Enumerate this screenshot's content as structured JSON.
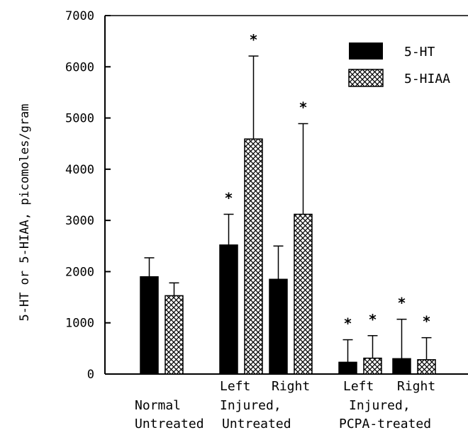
{
  "chart_data": {
    "type": "bar",
    "title": "",
    "xlabel": "",
    "ylabel": "5-HT or 5-HIAA, picomoles/gram",
    "ylim": [
      0,
      7000
    ],
    "yticks": [
      0,
      1000,
      2000,
      3000,
      4000,
      5000,
      6000,
      7000
    ],
    "grid": false,
    "legend_position": "top-right",
    "colors": {
      "5-HT": "#000000",
      "5-HIAA": "crosshatch"
    },
    "series": [
      {
        "name": "5-HT",
        "values": [
          1900,
          2520,
          1850,
          230,
          300
        ],
        "errors": [
          370,
          600,
          650,
          440,
          770
        ]
      },
      {
        "name": "5-HIAA",
        "values": [
          1530,
          4590,
          3120,
          310,
          280
        ],
        "errors": [
          250,
          1620,
          1770,
          440,
          430
        ]
      }
    ],
    "groups": [
      {
        "id": "normal-untreated"
      },
      {
        "id": "left-injured-untreated"
      },
      {
        "id": "right-injured-untreated"
      },
      {
        "id": "left-injured-pcpa"
      },
      {
        "id": "right-injured-pcpa"
      }
    ],
    "significant": [
      [
        false,
        false
      ],
      [
        true,
        true
      ],
      [
        false,
        true
      ],
      [
        true,
        true
      ],
      [
        true,
        true
      ]
    ],
    "significance_symbol": "*",
    "category_labels": {
      "left_1": "Left",
      "right_1": "Right",
      "left_2": "Left",
      "right_2": "Right",
      "normal": "Normal",
      "untreated_1": "Untreated",
      "injured_1": "Injured,",
      "untreated_2": "Untreated",
      "injured_2": "Injured,",
      "pcpa": "PCPA-treated"
    }
  }
}
